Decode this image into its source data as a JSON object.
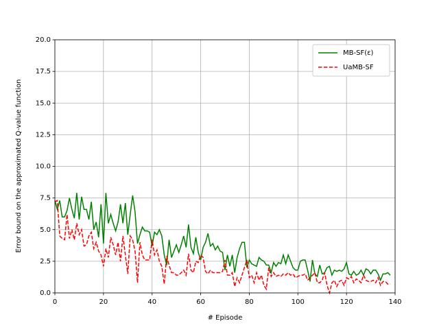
{
  "chart_data": {
    "type": "line",
    "x_label": "# Episode",
    "y_label": "Error bound on the approximated Q-value function",
    "x": [
      0,
      1,
      2,
      3,
      4,
      5,
      6,
      7,
      8,
      9,
      10,
      11,
      12,
      13,
      14,
      15,
      16,
      17,
      18,
      19,
      20,
      21,
      22,
      23,
      24,
      25,
      26,
      27,
      28,
      29,
      30,
      31,
      32,
      33,
      34,
      35,
      36,
      37,
      38,
      39,
      40,
      41,
      42,
      43,
      44,
      45,
      46,
      47,
      48,
      49,
      50,
      51,
      52,
      53,
      54,
      55,
      56,
      57,
      58,
      59,
      60,
      61,
      62,
      63,
      64,
      65,
      66,
      67,
      68,
      69,
      70,
      71,
      72,
      73,
      74,
      75,
      76,
      77,
      78,
      79,
      80,
      81,
      82,
      83,
      84,
      85,
      86,
      87,
      88,
      89,
      90,
      91,
      92,
      93,
      94,
      95,
      96,
      97,
      98,
      99,
      100,
      101,
      102,
      103,
      104,
      105,
      106,
      107,
      108,
      109,
      110,
      111,
      112,
      113,
      114,
      115,
      116,
      117,
      118,
      119,
      120,
      121,
      122,
      123,
      124,
      125,
      126,
      127,
      128,
      129,
      130,
      131,
      132,
      133,
      134,
      135,
      136,
      137,
      138
    ],
    "series": [
      {
        "name": "MB-SF(ε)",
        "color": "#008000",
        "dash": false,
        "values": [
          7.3,
          6.6,
          7.3,
          6.0,
          6.0,
          6.5,
          7.5,
          6.6,
          5.9,
          7.9,
          5.8,
          7.6,
          6.6,
          6.6,
          5.8,
          7.2,
          5.0,
          5.6,
          4.4,
          7.0,
          3.9,
          7.9,
          5.5,
          6.2,
          5.5,
          4.9,
          5.6,
          7.0,
          5.5,
          7.1,
          4.6,
          6.2,
          7.7,
          6.4,
          3.9,
          4.6,
          5.2,
          4.9,
          4.9,
          4.8,
          3.7,
          4.8,
          4.6,
          5.0,
          4.5,
          3.0,
          2.2,
          4.2,
          2.8,
          3.3,
          3.8,
          3.2,
          3.8,
          4.5,
          3.6,
          5.4,
          3.6,
          3.1,
          4.4,
          3.2,
          2.6,
          3.6,
          4.0,
          4.7,
          3.7,
          3.9,
          3.4,
          3.7,
          3.3,
          3.2,
          1.8,
          3.0,
          2.1,
          3.0,
          1.6,
          2.8,
          3.5,
          4.0,
          4.0,
          2.0,
          2.6,
          2.3,
          2.2,
          2.1,
          2.8,
          2.6,
          2.5,
          2.2,
          2.2,
          1.6,
          2.4,
          2.1,
          2.4,
          2.3,
          3.0,
          2.3,
          3.0,
          2.5,
          2.0,
          1.8,
          1.8,
          2.5,
          2.6,
          2.6,
          1.8,
          0.9,
          2.6,
          1.5,
          1.3,
          2.2,
          1.5,
          1.6,
          2.0,
          2.1,
          1.4,
          1.8,
          1.7,
          1.8,
          1.7,
          1.9,
          2.4,
          1.5,
          1.4,
          1.7,
          1.4,
          1.5,
          1.8,
          1.4,
          1.9,
          1.8,
          1.5,
          1.8,
          1.8,
          1.5,
          1.0,
          1.5,
          1.5,
          1.6,
          1.4
        ]
      },
      {
        "name": "UaMB-SF",
        "color": "#ff0000",
        "dash": true,
        "values": [
          7.2,
          7.3,
          4.5,
          4.3,
          4.2,
          6.2,
          4.3,
          5.0,
          4.2,
          5.5,
          4.6,
          5.0,
          3.7,
          3.8,
          4.5,
          4.8,
          3.5,
          4.0,
          3.3,
          3.0,
          2.1,
          3.5,
          2.8,
          4.4,
          3.8,
          3.0,
          4.0,
          2.5,
          4.5,
          3.0,
          1.5,
          4.5,
          4.2,
          3.3,
          0.8,
          4.0,
          3.0,
          2.6,
          2.6,
          2.6,
          4.2,
          3.0,
          3.4,
          2.5,
          2.1,
          0.7,
          2.9,
          2.2,
          1.6,
          1.6,
          1.4,
          1.4,
          1.6,
          1.8,
          1.4,
          3.1,
          1.8,
          1.6,
          2.5,
          2.4,
          3.0,
          2.8,
          1.7,
          1.5,
          1.8,
          1.6,
          1.6,
          1.6,
          1.6,
          1.7,
          2.6,
          1.4,
          1.4,
          1.6,
          0.5,
          1.2,
          0.8,
          1.4,
          2.0,
          2.6,
          1.2,
          1.4,
          0.8,
          1.6,
          1.0,
          1.4,
          0.6,
          0.3,
          2.0,
          1.3,
          1.6,
          1.3,
          1.4,
          1.3,
          1.5,
          1.4,
          1.6,
          1.4,
          1.5,
          1.2,
          1.3,
          1.4,
          1.4,
          1.5,
          1.0,
          1.2,
          1.4,
          1.6,
          0.8,
          0.8,
          1.0,
          1.6,
          0.6,
          0.0,
          0.8,
          1.0,
          0.5,
          0.9,
          1.0,
          0.6,
          1.2,
          1.1,
          1.3,
          0.8,
          1.1,
          1.0,
          0.8,
          1.4,
          1.0,
          0.9,
          0.9,
          1.0,
          0.8,
          1.2,
          0.6,
          0.9,
          0.9,
          0.7,
          0.7
        ]
      }
    ],
    "xlim": [
      0,
      140
    ],
    "xticks": [
      0,
      20,
      40,
      60,
      80,
      100,
      120,
      140
    ],
    "ylim": [
      0,
      20
    ],
    "yticks": [
      {
        "value": 0,
        "label": "0.0"
      },
      2.5,
      {
        "value": 5,
        "label": "5.0"
      },
      7.5,
      {
        "value": 10,
        "label": "10.0"
      },
      12.5,
      {
        "value": 15,
        "label": "15.0"
      },
      17.5,
      {
        "value": 20,
        "label": "20.0"
      }
    ],
    "grid": true,
    "legend": "upper right"
  }
}
